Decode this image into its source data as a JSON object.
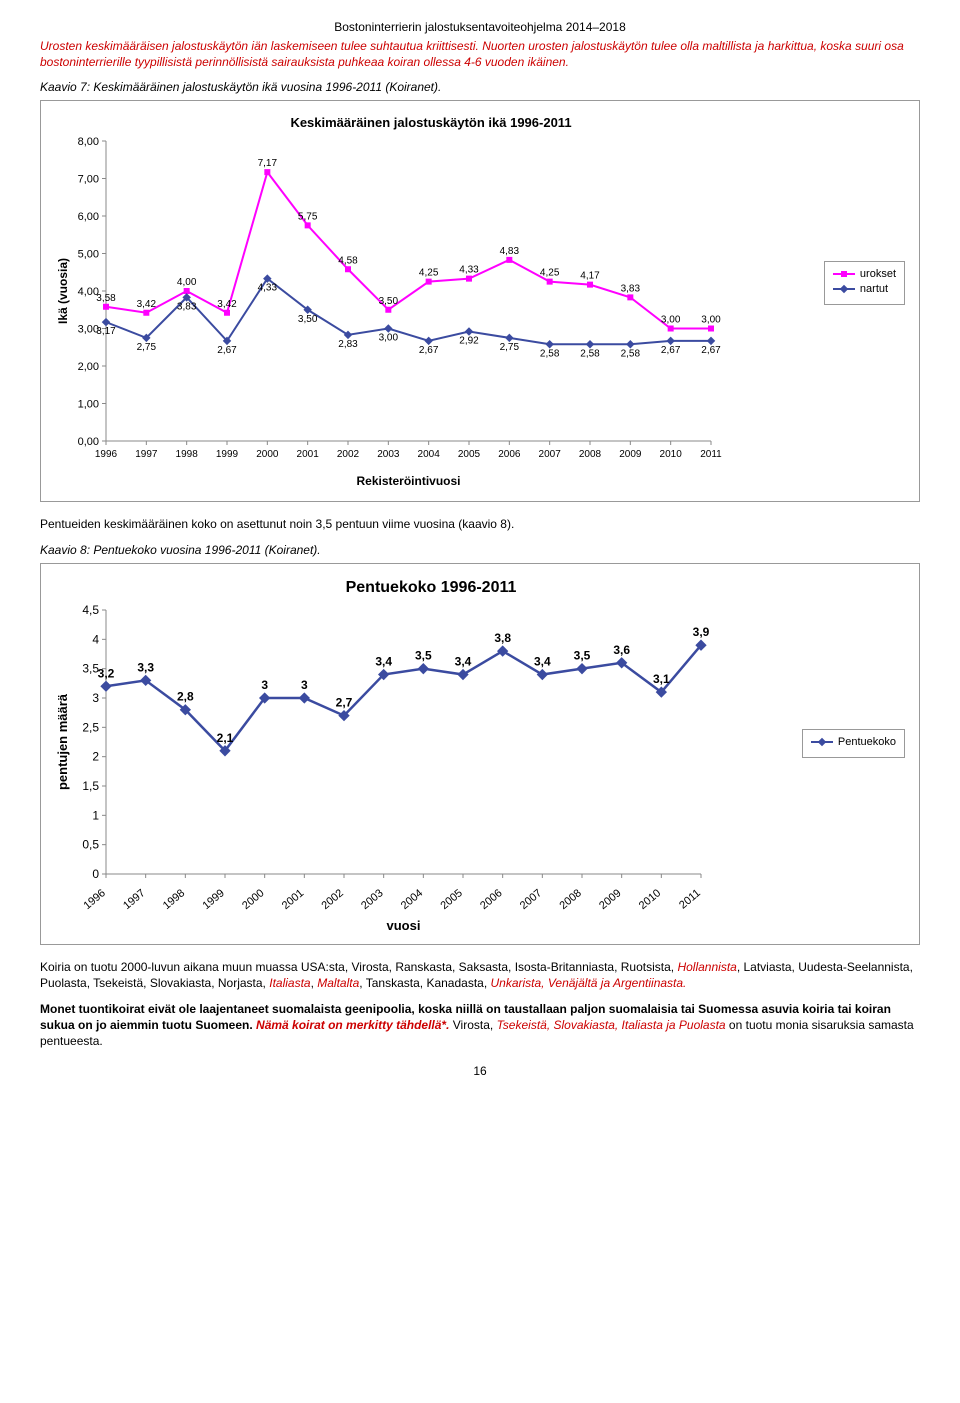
{
  "header": "Bostoninterrierin jalostuksentavoiteohjelma 2014–2018",
  "intro_red": "Urosten keskimääräisen jalostuskäytön iän laskemiseen tulee suhtautua kriittisesti. Nuorten urosten jalostuskäytön tulee olla maltillista ja harkittua, koska suuri osa bostoninterrierille tyypillisistä perinnöllisistä sairauksista puhkeaa koiran ollessa 4-6 vuoden ikäinen.",
  "kaavio7": "Kaavio 7: Keskimääräinen jalostuskäytön ikä vuosina 1996-2011 (Koiranet).",
  "chart1": {
    "title": "Keskimääräinen jalostuskäytön ikä 1996-2011",
    "ylabel": "Ikä (vuosia)",
    "xlabel": "Rekisteröintivuosi",
    "ylim": [
      0,
      8
    ],
    "ytick_step": 1,
    "years": [
      1996,
      1997,
      1998,
      1999,
      2000,
      2001,
      2002,
      2003,
      2004,
      2005,
      2006,
      2007,
      2008,
      2009,
      2010,
      2011
    ],
    "urokset": {
      "label": "urokset",
      "color": "#ff00ff",
      "values": [
        3.58,
        3.42,
        4.0,
        3.42,
        7.17,
        5.75,
        4.58,
        3.5,
        4.25,
        4.33,
        4.83,
        4.25,
        4.17,
        3.83,
        3.0,
        3.0
      ],
      "labels": [
        "3,58",
        "3,42",
        "4,00",
        "3,42",
        "7,17",
        "5,75",
        "4,58",
        "3,50",
        "4,25",
        "4,33",
        "4,83",
        "4,25",
        "4,17",
        "3,83",
        "3,00",
        "3,00"
      ]
    },
    "nartut": {
      "label": "nartut",
      "color": "#3b4ba0",
      "values": [
        3.17,
        2.75,
        3.83,
        2.67,
        4.33,
        3.5,
        2.83,
        3.0,
        2.67,
        2.92,
        2.75,
        2.58,
        2.58,
        2.58,
        2.67,
        2.67
      ],
      "labels": [
        "3,17",
        "2,75",
        "3,83",
        "2,67",
        "4,33",
        "3,50",
        "2,83",
        "3,00",
        "2,67",
        "2,92",
        "2,75",
        "2,58",
        "2,58",
        "2,58",
        "2,67",
        "2,67"
      ]
    },
    "yticks": [
      "0,00",
      "1,00",
      "2,00",
      "3,00",
      "4,00",
      "5,00",
      "6,00",
      "7,00",
      "8,00"
    ]
  },
  "mid_text": "Pentueiden keskimääräinen koko on asettunut noin 3,5 pentuun viime vuosina (kaavio 8).",
  "kaavio8": "Kaavio 8: Pentuekoko vuosina 1996-2011 (Koiranet).",
  "chart2": {
    "title": "Pentuekoko 1996-2011",
    "ylabel": "pentujen määrä",
    "xlabel": "vuosi",
    "ylim": [
      0,
      4.5
    ],
    "ytick_step": 0.5,
    "years": [
      1996,
      1997,
      1998,
      1999,
      2000,
      2001,
      2002,
      2003,
      2004,
      2005,
      2006,
      2007,
      2008,
      2009,
      2010,
      2011
    ],
    "series": {
      "label": "Pentuekoko",
      "color": "#3b4ba0",
      "values": [
        3.2,
        3.3,
        2.8,
        2.1,
        3.0,
        3.0,
        2.7,
        3.4,
        3.5,
        3.4,
        3.8,
        3.4,
        3.5,
        3.6,
        3.1,
        3.9
      ],
      "labels": [
        "3,2",
        "3,3",
        "2,8",
        "2,1",
        "3",
        "3",
        "2,7",
        "3,4",
        "3,5",
        "3,4",
        "3,8",
        "3,4",
        "3,5",
        "3,6",
        "3,1",
        "3,9"
      ]
    },
    "yticks": [
      "0",
      "0,5",
      "1",
      "1,5",
      "2",
      "2,5",
      "3",
      "3,5",
      "4",
      "4,5"
    ]
  },
  "bottom_p1_prefix": "Koiria on tuotu 2000-luvun aikana muun muassa USA:sta, Virosta, Ranskasta, Saksasta, Isosta-Britanniasta, Ruotsista, ",
  "bottom_p1_red1": "Hollannista",
  "bottom_p1_mid": ", Latviasta, Uudesta-Seelannista, Puolasta, Tsekeistä, Slovakiasta, Norjasta, ",
  "bottom_p1_red2": "Italiasta",
  "bottom_p1_sep1": ", ",
  "bottom_p1_red3": "Maltalta",
  "bottom_p1_sep2": ", Tanskasta, Kanadasta, ",
  "bottom_p1_red4": "Unkarista, Venäjältä ja Argentiinasta.",
  "bottom_p2_bold": "Monet tuontikoirat eivät ole laajentaneet suomalaista geenipoolia, koska niillä on taustallaan paljon suomalaisia tai Suomessa asuvia koiria tai koiran sukua on jo aiemmin tuotu Suomeen.",
  "bottom_p2_redbold": " Nämä koirat on merkitty tähdellä*.",
  "bottom_p2_tail1": " Virosta, ",
  "bottom_p2_red": "Tsekeistä, Slovakiasta, Italiasta ja Puolasta",
  "bottom_p2_tail2": " on tuotu monia sisaruksia samasta pentueesta.",
  "page_number": "16"
}
